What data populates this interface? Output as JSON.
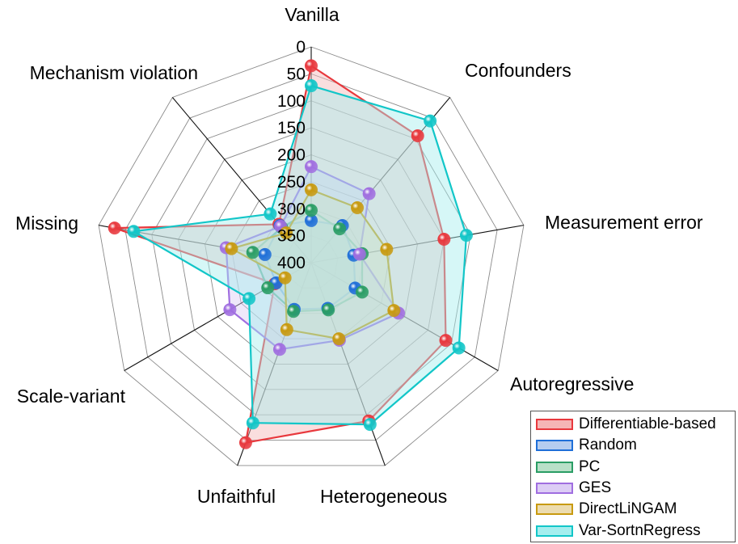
{
  "chart_data": {
    "type": "radar",
    "axes": [
      "Vanilla",
      "Confounders",
      "Measurement error",
      "Autoregressive",
      "Heterogeneous",
      "Unfaithful",
      "Scale-variant",
      "Missing",
      "Mechanism violation"
    ],
    "radial_ticks": [
      "0",
      "50",
      "100",
      "150",
      "200",
      "250",
      "300",
      "350",
      "400"
    ],
    "radial_range": [
      400,
      0
    ],
    "radial_direction": "inverted (0 at outer ring, 400 at center)",
    "grid": true,
    "legend_position": "bottom-right",
    "series": [
      {
        "name": "Differentiable-based",
        "color": "#e8383d",
        "fill": "#f5b5b5",
        "values": [
          35,
          93,
          150,
          112,
          88,
          45,
          322,
          30,
          307
        ]
      },
      {
        "name": "Random",
        "color": "#1f6fd8",
        "fill": "#b5cdf0",
        "values": [
          322,
          310,
          320,
          306,
          310,
          308,
          325,
          313,
          310
        ]
      },
      {
        "name": "PC",
        "color": "#2a9d65",
        "fill": "#b8e0c8",
        "values": [
          303,
          318,
          304,
          291,
          307,
          304,
          307,
          290,
          315
        ]
      },
      {
        "name": "GES",
        "color": "#a06ee0",
        "fill": "#dccdf5",
        "values": [
          222,
          233,
          309,
          213,
          247,
          229,
          226,
          240,
          312
        ]
      },
      {
        "name": "DirectLiNGAM",
        "color": "#c89a10",
        "fill": "#ecdcb0",
        "values": [
          265,
          267,
          258,
          223,
          250,
          268,
          344,
          250,
          328
        ]
      },
      {
        "name": "Var-SortnRegress",
        "color": "#12c6c8",
        "fill": "#a5eeee",
        "values": [
          72,
          57,
          108,
          84,
          81,
          84,
          267,
          66,
          282
        ]
      }
    ]
  }
}
